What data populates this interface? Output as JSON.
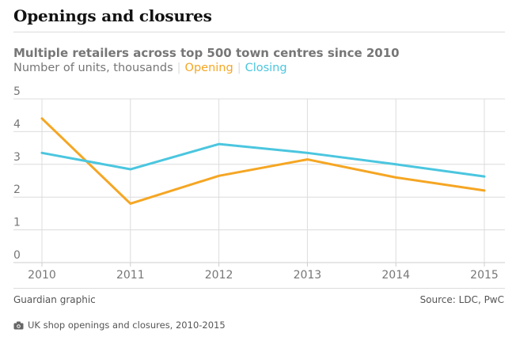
{
  "header": {
    "title": "Openings and closures",
    "subtitle": "Multiple retailers across top 500 town centres since 2010",
    "units_label": "Number of units, thousands",
    "separator": "|"
  },
  "footer": {
    "credit": "Guardian graphic",
    "source": "Source: LDC, PwC",
    "caption": "UK shop openings and closures, 2010-2015"
  },
  "colors": {
    "opening": "#f5a623",
    "closing": "#4bc6df",
    "grid": "#dcdcdc",
    "axis": "#cccccc",
    "text_muted": "#767676"
  },
  "icons": {
    "caption_icon": "camera-icon"
  },
  "chart_data": {
    "type": "line",
    "title": "",
    "xlabel": "",
    "ylabel": "",
    "x": [
      2010,
      2011,
      2012,
      2013,
      2014,
      2015
    ],
    "ylim": [
      0,
      5
    ],
    "yticks": [
      0,
      1,
      2,
      3,
      4,
      5
    ],
    "grid": true,
    "legend": "inline-subtitle",
    "series": [
      {
        "name": "Opening",
        "values": [
          4.4,
          1.8,
          2.65,
          3.15,
          2.6,
          2.2
        ]
      },
      {
        "name": "Closing",
        "values": [
          3.35,
          2.85,
          3.62,
          3.35,
          3.0,
          2.63
        ]
      }
    ]
  }
}
